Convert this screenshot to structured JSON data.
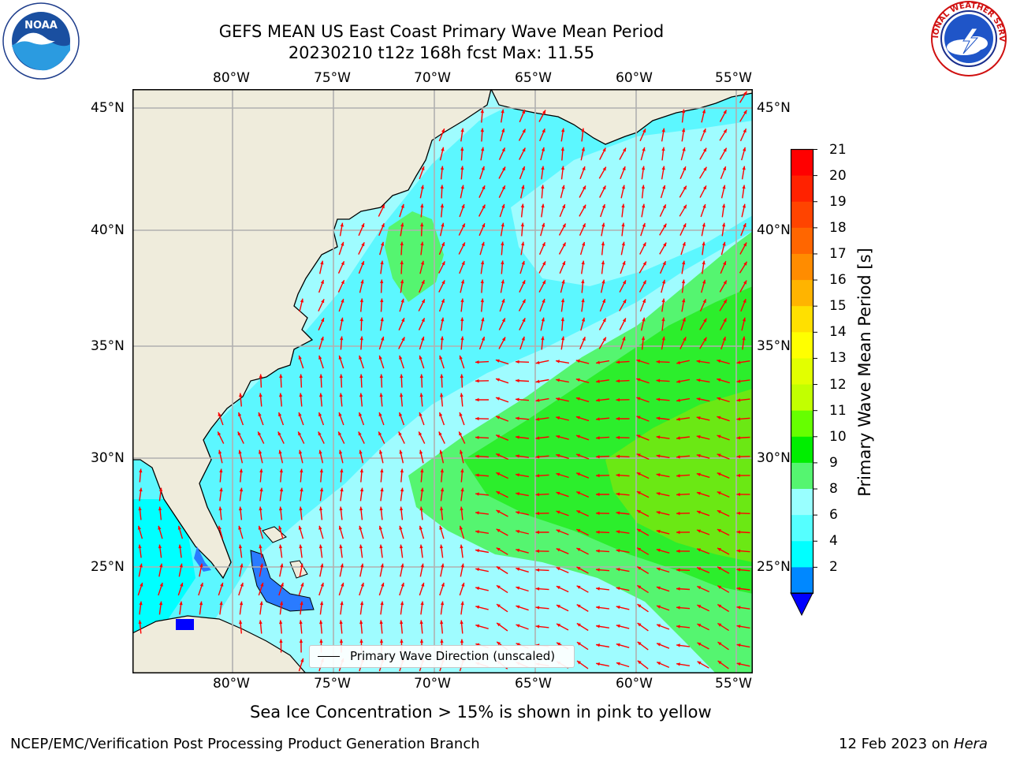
{
  "header": {
    "title_line1": "GEFS MEAN US East Coast Primary Wave Mean Period",
    "title_line2": "20230210 t12z 168h fcst   Max: 11.55"
  },
  "logos": {
    "left": {
      "name": "NOAA",
      "ring_text": "NATIONAL OCEANIC AND ATMOSPHERIC ADMINISTRATION · U.S. DEPARTMENT OF COMMERCE"
    },
    "right": {
      "name": "National Weather Service",
      "ring_text": "NATIONAL WEATHER SERVICE"
    }
  },
  "axes": {
    "lon_ticks": [
      "80°W",
      "75°W",
      "70°W",
      "65°W",
      "60°W",
      "55°W"
    ],
    "lat_ticks": [
      "45°N",
      "40°N",
      "35°N",
      "30°N",
      "25°N"
    ],
    "grid": true
  },
  "legend": {
    "label": "Primary Wave Direction (unscaled)"
  },
  "colorbar": {
    "label": "Primary Wave Mean Period [s]",
    "ticks": [
      "21",
      "20",
      "19",
      "18",
      "17",
      "16",
      "15",
      "14",
      "13",
      "12",
      "11",
      "10",
      "9",
      "8",
      "6",
      "4",
      "2"
    ],
    "colors": [
      "#ff0000",
      "#ff2200",
      "#ff4400",
      "#ff6600",
      "#ff8c00",
      "#ffb400",
      "#ffe000",
      "#ffff00",
      "#e2ff00",
      "#c2ff00",
      "#66ff00",
      "#00ee00",
      "#55f570",
      "#99ffff",
      "#55ffff",
      "#00ffff",
      "#0088ff"
    ],
    "extend_color": "#0000ff"
  },
  "colors": {
    "land": "#efecdc",
    "sea_low": "#9ffcff",
    "sea_mid": "#5cf7ff",
    "sea_cyan": "#00ffff",
    "sea_green9": "#55f570",
    "sea_green10": "#2cee2c",
    "sea_green11": "#6be814",
    "sea_blue": "#2a7bff",
    "arrow": "#ff0000"
  },
  "footer": {
    "subtitle": "Sea Ice Concentration > 15% is shown in pink to yellow",
    "credit": "NCEP/EMC/Verification Post Processing Product Generation Branch",
    "date": "12 Feb 2023 on",
    "machine": "Hera"
  }
}
